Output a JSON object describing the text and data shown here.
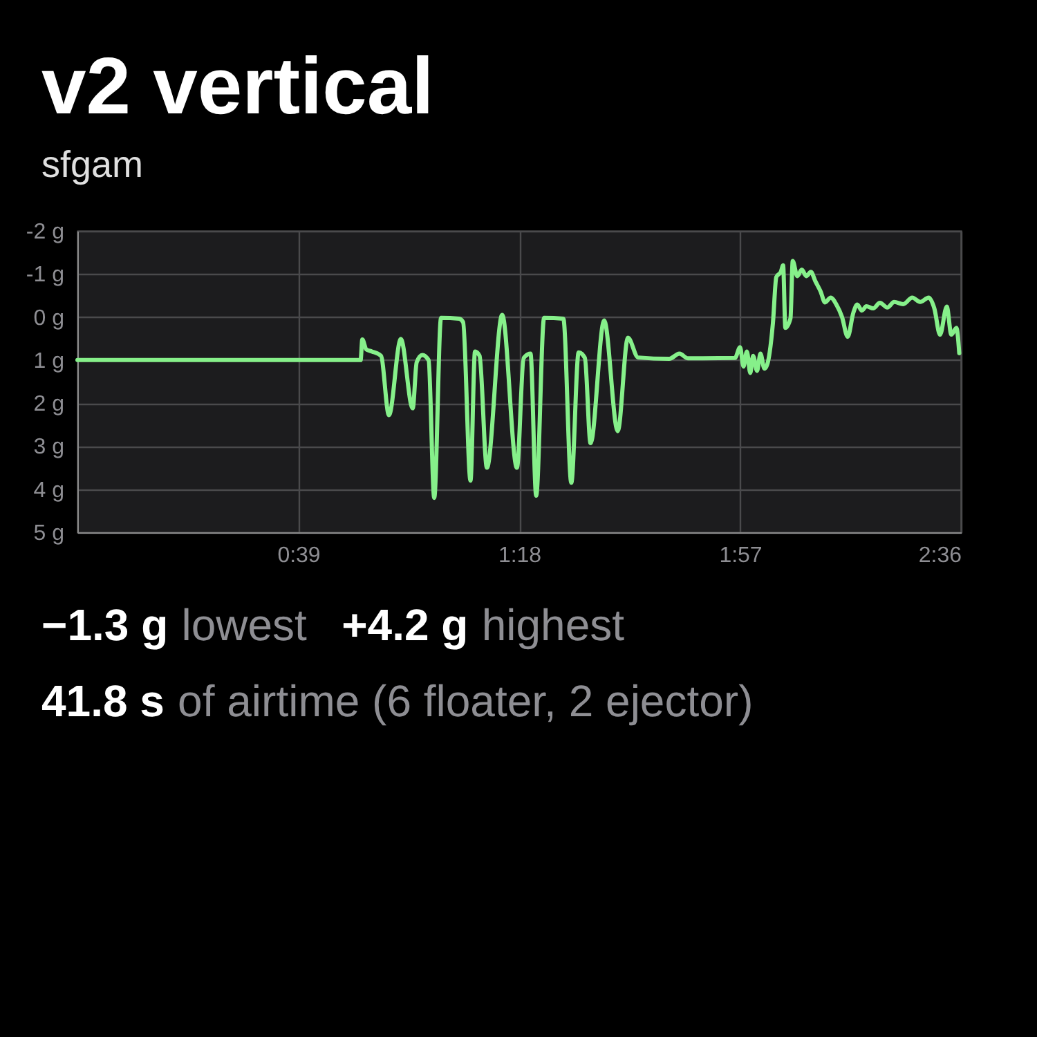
{
  "chart_data": {
    "type": "line",
    "title": "v2 vertical",
    "subtitle": "sfgam",
    "x": [
      0,
      50.0,
      50.3,
      51.0,
      52.0,
      53.6,
      55.0,
      57.1,
      59.2,
      59.9,
      60.9,
      62.0,
      63.0,
      64.2,
      67.4,
      68.1,
      69.4,
      70.2,
      71.0,
      72.3,
      75.0,
      77.6,
      78.8,
      80.0,
      81.0,
      82.4,
      85.8,
      87.2,
      88.5,
      89.6,
      90.6,
      93.0,
      95.4,
      97.2,
      99.0,
      104.5,
      106.3,
      107.8,
      116.1,
      117.0,
      117.6,
      118.2,
      118.8,
      119.3,
      120.0,
      120.6,
      121.3,
      121.8,
      122.8,
      123.4,
      124.2,
      124.6,
      125.0,
      125.9,
      126.3,
      127.1,
      127.9,
      128.7,
      129.5,
      130.3,
      131.2,
      132.0,
      133.0,
      134.0,
      135.0,
      136.0,
      137.0,
      137.7,
      138.5,
      139.3,
      140.5,
      141.7,
      143.0,
      144.2,
      145.8,
      147.4,
      148.8,
      150.3,
      151.3,
      152.3,
      153.5,
      154.3,
      155.2,
      155.7
    ],
    "series": [
      {
        "color": "#86f08a",
        "values": [
          1.0,
          1.0,
          0.52,
          0.75,
          0.8,
          0.9,
          2.28,
          0.51,
          2.12,
          1.05,
          0.88,
          1.0,
          4.2,
          0.02,
          0.04,
          0.12,
          3.8,
          0.8,
          0.9,
          3.5,
          -0.05,
          3.5,
          0.95,
          0.85,
          4.15,
          0.02,
          0.04,
          3.85,
          0.82,
          0.95,
          2.93,
          0.08,
          2.65,
          0.48,
          0.94,
          0.97,
          0.85,
          0.96,
          0.95,
          0.7,
          1.15,
          0.8,
          1.3,
          0.9,
          1.25,
          0.85,
          1.2,
          1.1,
          0.14,
          -0.93,
          -1.05,
          -1.2,
          0.25,
          0.03,
          -1.3,
          -0.95,
          -1.1,
          -0.95,
          -1.05,
          -0.83,
          -0.6,
          -0.34,
          -0.45,
          -0.29,
          0.0,
          0.46,
          -0.1,
          -0.29,
          -0.15,
          -0.25,
          -0.2,
          -0.33,
          -0.22,
          -0.35,
          -0.3,
          -0.45,
          -0.35,
          -0.45,
          -0.2,
          0.41,
          -0.24,
          0.41,
          0.25,
          0.84
        ]
      }
    ],
    "xlim": [
      0,
      156
    ],
    "xticks": [
      {
        "value": 39,
        "label": "0:39"
      },
      {
        "value": 78,
        "label": "1:18"
      },
      {
        "value": 117,
        "label": "1:57"
      },
      {
        "value": 156,
        "label": "2:36"
      }
    ],
    "ylim": [
      5,
      -2
    ],
    "yticks": [
      {
        "value": -2,
        "label": "-2 g"
      },
      {
        "value": -1,
        "label": "-1 g"
      },
      {
        "value": 0,
        "label": "0 g"
      },
      {
        "value": 1,
        "label": "1 g"
      },
      {
        "value": 2,
        "label": "2 g"
      },
      {
        "value": 3,
        "label": "3 g"
      },
      {
        "value": 4,
        "label": "4 g"
      },
      {
        "value": 5,
        "label": "5 g"
      }
    ],
    "grid": true,
    "annotations": [
      "−1.3 g",
      "lowest",
      "+4.2 g",
      "highest",
      "41.8 s",
      "of airtime (6 floater, 2 ejector)"
    ]
  }
}
